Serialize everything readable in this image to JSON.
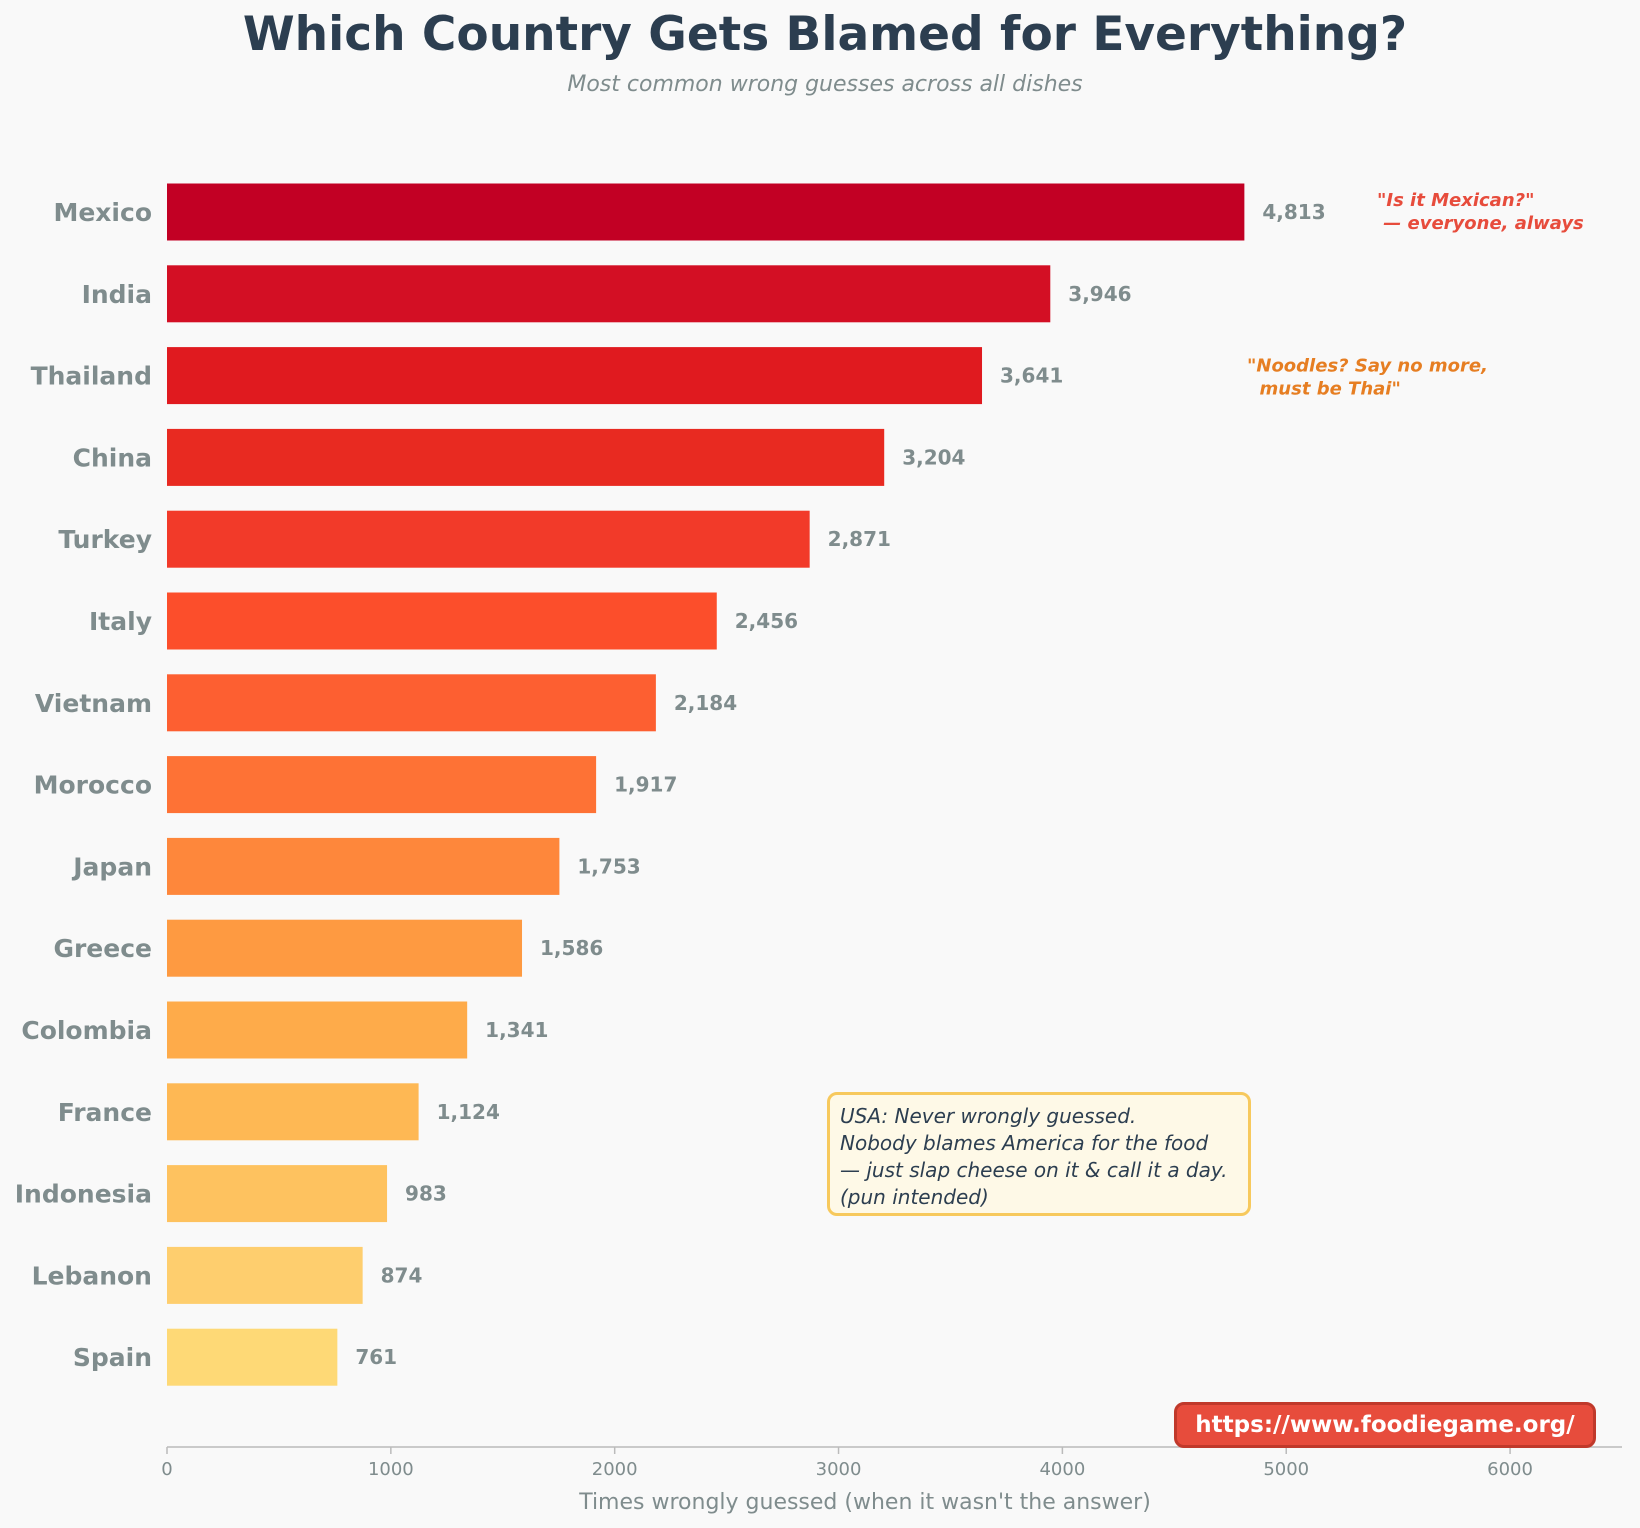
{
  "chart_data": {
    "type": "bar",
    "orientation": "horizontal",
    "title": "Which Country Gets Blamed for Everything?",
    "subtitle": "Most common wrong guesses across all dishes",
    "xlabel": "Times wrongly guessed (when it wasn't the answer)",
    "ylabel": "",
    "xlim": [
      0,
      6500
    ],
    "xticks": [
      0,
      1000,
      2000,
      3000,
      4000,
      5000,
      6000
    ],
    "grid": false,
    "categories": [
      "Mexico",
      "India",
      "Thailand",
      "China",
      "Turkey",
      "Italy",
      "Vietnam",
      "Morocco",
      "Japan",
      "Greece",
      "Colombia",
      "France",
      "Indonesia",
      "Lebanon",
      "Spain"
    ],
    "values": [
      4813,
      3946,
      3641,
      3204,
      2871,
      2456,
      2184,
      1917,
      1753,
      1586,
      1341,
      1124,
      983,
      874,
      761
    ],
    "value_labels": [
      "4,813",
      "3,946",
      "3,641",
      "3,204",
      "2,871",
      "2,456",
      "2,184",
      "1,917",
      "1,753",
      "1,586",
      "1,341",
      "1,124",
      "983",
      "874",
      "761"
    ],
    "colors": [
      "#c20024",
      "#d30f24",
      "#e01a1f",
      "#e82a21",
      "#f23a29",
      "#fc4e2b",
      "#fd5f31",
      "#fe7235",
      "#fe873b",
      "#fe9a41",
      "#feab4a",
      "#feb854",
      "#fec25f",
      "#fece6e",
      "#fed976"
    ],
    "annotations": [
      {
        "lines": [
          "\"Is it Mexican?\"",
          " — everyone, always"
        ],
        "category": "Mexico",
        "color": "#e74c3c"
      },
      {
        "lines": [
          "\"Noodles? Say no more,",
          "  must be Thai\""
        ],
        "category": "Thailand",
        "color": "#e67e22"
      }
    ],
    "note": {
      "lines": [
        "USA: Never wrongly guessed.",
        "Nobody blames America for the food",
        "— just slap cheese on it & call it a day.",
        "(pun intended)"
      ]
    },
    "source_url": "https://www.foodiegame.org/"
  }
}
